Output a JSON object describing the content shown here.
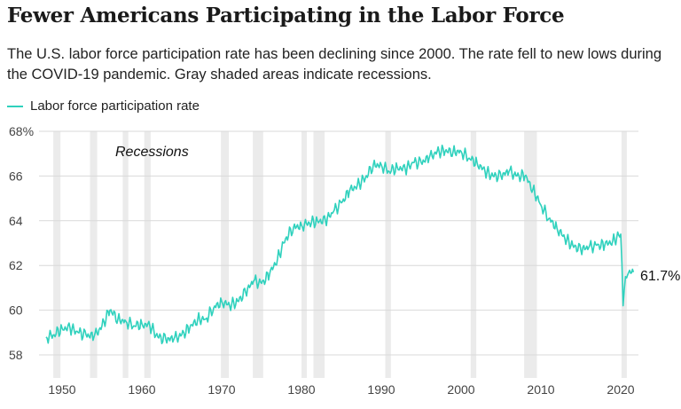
{
  "title": "Fewer Americans Participating in the Labor Force",
  "subtitle": "The U.S. labor force participation rate has been declining since 2000. The rate fell to new lows during the COVID-19 pandemic. Gray shaded areas indicate recessions.",
  "colors": {
    "line": "#2fd1bd",
    "recession": "#ebebeb",
    "grid": "#d9d9d9"
  },
  "chart_data": {
    "type": "line",
    "ylim": [
      58,
      68
    ],
    "xlim": [
      1948,
      2022
    ],
    "ytick_values": [
      58,
      60,
      62,
      64,
      66,
      68
    ],
    "ytick_labels": [
      "58",
      "60",
      "62",
      "64",
      "66",
      "68%"
    ],
    "xtick_values": [
      1950,
      1960,
      1970,
      1980,
      1990,
      2000,
      2010,
      2020
    ],
    "xtick_labels": [
      "1950",
      "1960",
      "1970",
      "1980",
      "1990",
      "2000",
      "2010",
      "2020"
    ],
    "legend": "top-left",
    "grid": true,
    "recession_label": "Recessions",
    "end_label": "61.7%",
    "recessions": [
      [
        1948.9,
        1949.8
      ],
      [
        1953.5,
        1954.4
      ],
      [
        1957.6,
        1958.3
      ],
      [
        1960.3,
        1961.1
      ],
      [
        1969.9,
        1970.9
      ],
      [
        1973.9,
        1975.2
      ],
      [
        1980.0,
        1980.5
      ],
      [
        1981.5,
        1982.9
      ],
      [
        1990.5,
        1991.2
      ],
      [
        2001.2,
        2001.9
      ],
      [
        2007.9,
        2009.5
      ],
      [
        2020.1,
        2020.4
      ]
    ],
    "series": [
      {
        "name": "Labor force participation rate",
        "x": [
          1948.0,
          1949.0,
          1950.0,
          1951.0,
          1952.0,
          1953.0,
          1954.0,
          1955.0,
          1956.0,
          1957.0,
          1958.0,
          1959.0,
          1960.0,
          1961.0,
          1962.0,
          1963.0,
          1964.0,
          1965.0,
          1966.0,
          1967.0,
          1968.0,
          1969.0,
          1970.0,
          1971.0,
          1972.0,
          1973.0,
          1974.0,
          1975.0,
          1976.0,
          1977.0,
          1978.0,
          1979.0,
          1980.0,
          1981.0,
          1982.0,
          1983.0,
          1984.0,
          1985.0,
          1986.0,
          1987.0,
          1988.0,
          1989.0,
          1990.0,
          1991.0,
          1992.0,
          1993.0,
          1994.0,
          1995.0,
          1996.0,
          1997.0,
          1998.0,
          1999.0,
          2000.0,
          2001.0,
          2002.0,
          2003.0,
          2004.0,
          2005.0,
          2006.0,
          2007.0,
          2008.0,
          2009.0,
          2010.0,
          2011.0,
          2012.0,
          2013.0,
          2014.0,
          2015.0,
          2016.0,
          2017.0,
          2018.0,
          2019.0,
          2020.0,
          2020.3,
          2020.6,
          2021.0,
          2021.6
        ],
        "values": [
          58.8,
          58.9,
          59.2,
          59.2,
          59.0,
          58.9,
          58.8,
          59.3,
          60.0,
          59.6,
          59.5,
          59.3,
          59.4,
          59.3,
          58.8,
          58.7,
          58.7,
          58.9,
          59.2,
          59.6,
          59.6,
          60.1,
          60.4,
          60.2,
          60.4,
          60.8,
          61.3,
          61.2,
          61.6,
          62.3,
          63.2,
          63.7,
          63.8,
          63.9,
          64.0,
          64.0,
          64.4,
          64.8,
          65.3,
          65.6,
          65.9,
          66.5,
          66.5,
          66.2,
          66.4,
          66.3,
          66.6,
          66.6,
          66.8,
          67.1,
          67.1,
          67.1,
          67.1,
          66.8,
          66.6,
          66.2,
          66.0,
          66.0,
          66.2,
          66.0,
          66.0,
          65.4,
          64.7,
          64.1,
          63.7,
          63.2,
          62.9,
          62.7,
          62.8,
          62.9,
          62.9,
          63.1,
          63.4,
          60.2,
          61.5,
          61.7,
          61.7
        ]
      }
    ]
  }
}
